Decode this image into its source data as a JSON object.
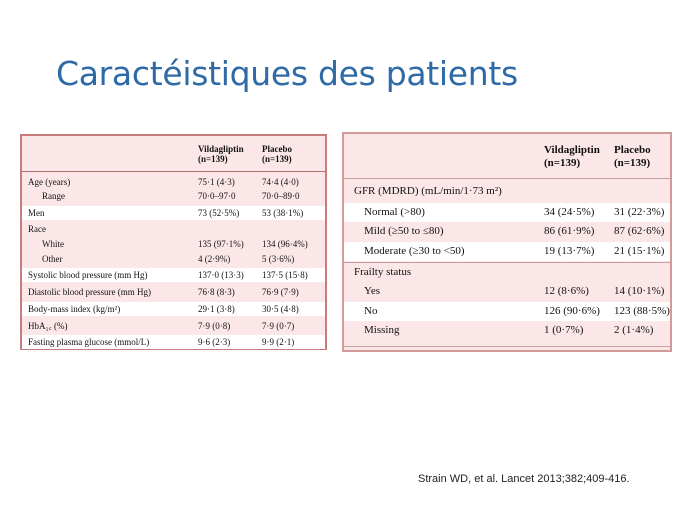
{
  "title": "Caractéistiques des patients",
  "table1": {
    "col1": "Vildagliptin",
    "col1_n": "(n=139)",
    "col2": "Placebo",
    "col2_n": "(n=139)",
    "rows": [
      {
        "label": "Age (years)",
        "v1": "75·1 (4·3)",
        "v2": "74·4 (4·0)"
      },
      {
        "label": "Range",
        "v1": "70·0–97·0",
        "v2": "70·0–89·0"
      },
      {
        "label": "Men",
        "v1": "73 (52·5%)",
        "v2": "53 (38·1%)"
      },
      {
        "label": "Race",
        "v1": "",
        "v2": ""
      },
      {
        "label": "White",
        "v1": "135 (97·1%)",
        "v2": "134 (96·4%)"
      },
      {
        "label": "Other",
        "v1": "4 (2·9%)",
        "v2": "5 (3·6%)"
      },
      {
        "label": "Systolic blood pressure (mm Hg)",
        "v1": "137·0 (13·3)",
        "v2": "137·5 (15·8)"
      },
      {
        "label": "Diastolic blood pressure (mm Hg)",
        "v1": "76·8 (8·3)",
        "v2": "76·9 (7·9)"
      },
      {
        "label": "Body-mass index (kg/m²)",
        "v1": "29·1 (3·8)",
        "v2": "30·5 (4·8)"
      },
      {
        "label": "HbA₁꜀ (%)",
        "v1": "7·9 (0·8)",
        "v2": "7·9 (0·7)"
      },
      {
        "label": "Fasting plasma glucose (mmol/L)",
        "v1": "9·6 (2·3)",
        "v2": "9·9 (2·1)"
      }
    ]
  },
  "table2": {
    "col1": "Vildagliptin",
    "col1_n": "(n=139)",
    "col2": "Placebo",
    "col2_n": "(n=139)",
    "rows": [
      {
        "label": "GFR (MDRD) (mL/min/1·73 m²)",
        "v1": "",
        "v2": ""
      },
      {
        "label": "Normal (>80)",
        "v1": "34 (24·5%)",
        "v2": "31 (22·3%)"
      },
      {
        "label": "Mild (≥50 to ≤80)",
        "v1": "86 (61·9%)",
        "v2": "87 (62·6%)"
      },
      {
        "label": "Moderate (≥30 to <50)",
        "v1": "19 (13·7%)",
        "v2": "21 (15·1%)"
      },
      {
        "label": "Frailty status",
        "v1": "",
        "v2": ""
      },
      {
        "label": "Yes",
        "v1": "12 (8·6%)",
        "v2": "14 (10·1%)"
      },
      {
        "label": "No",
        "v1": "126 (90·6%)",
        "v2": "123 (88·5%)"
      },
      {
        "label": "Missing",
        "v1": "1 (0·7%)",
        "v2": "2 (1·4%)"
      }
    ]
  },
  "citation": "Strain WD, et al. Lancet 2013;382;409-416."
}
